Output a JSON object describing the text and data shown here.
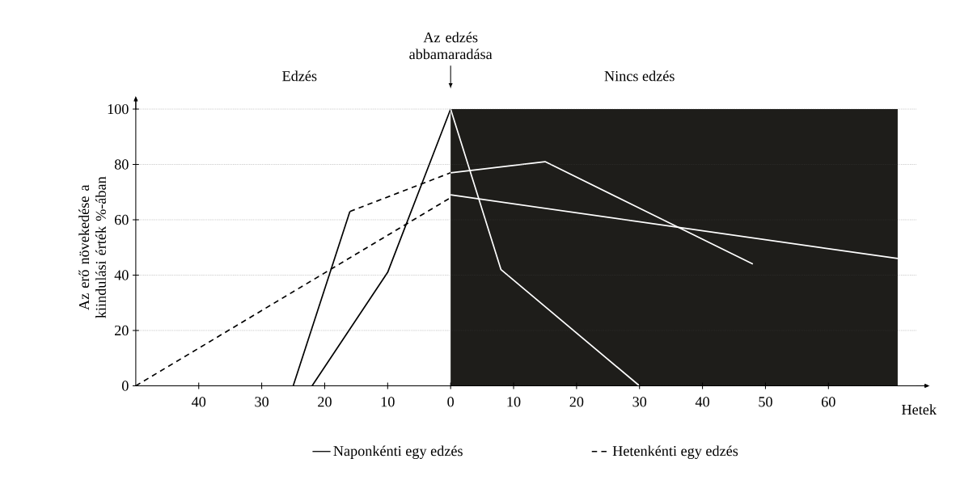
{
  "chart_data": {
    "type": "line",
    "xlabel": "Hetek",
    "ylabel": "Az erő növekedése a kiindulási érték %-ában",
    "xlim": [
      -50,
      74
    ],
    "ylim": [
      0,
      100
    ],
    "xticks": [
      {
        "value": -40,
        "label": "40"
      },
      {
        "value": -30,
        "label": "30"
      },
      {
        "value": -20,
        "label": "20"
      },
      {
        "value": -10,
        "label": "10"
      },
      0,
      10,
      20,
      30,
      40,
      50,
      60
    ],
    "yticks": [
      0,
      20,
      40,
      60,
      80,
      100
    ],
    "grid": "y",
    "marker": "none",
    "legend": "bottom",
    "bands": [
      {
        "axis": "x",
        "from": 0,
        "to": 71,
        "color": "#1e1d1a"
      }
    ],
    "annotations": [
      "Edzés",
      "Nincs edzés",
      "Az edzés abbamaradása"
    ],
    "series": [
      {
        "name": "Naponkénti egy edzés",
        "color": "#000000",
        "line_style": "solid",
        "x": [
          -25,
          -16
        ],
        "values": [
          0,
          63
        ]
      },
      {
        "color": "#000000",
        "line_style": "dashed",
        "x": [
          -16,
          0
        ],
        "values": [
          63,
          77
        ]
      },
      {
        "color": "#000000",
        "line_style": "solid",
        "x": [
          -22,
          -10,
          0
        ],
        "values": [
          0,
          41,
          100
        ]
      },
      {
        "name": "Hetenkénti  egy edzés",
        "color": "#000000",
        "line_style": "dashed",
        "x": [
          -50,
          0
        ],
        "values": [
          0,
          68
        ]
      },
      {
        "color": "#ffffff",
        "line_style": "solid",
        "x": [
          0,
          15,
          48
        ],
        "values": [
          77,
          81,
          44
        ]
      },
      {
        "color": "#ffffff",
        "line_style": "solid",
        "x": [
          0,
          8,
          30
        ],
        "values": [
          100,
          42,
          0
        ]
      },
      {
        "color": "#ffffff",
        "line_style": "solid",
        "x": [
          0,
          71
        ],
        "values": [
          69,
          46
        ]
      }
    ]
  }
}
